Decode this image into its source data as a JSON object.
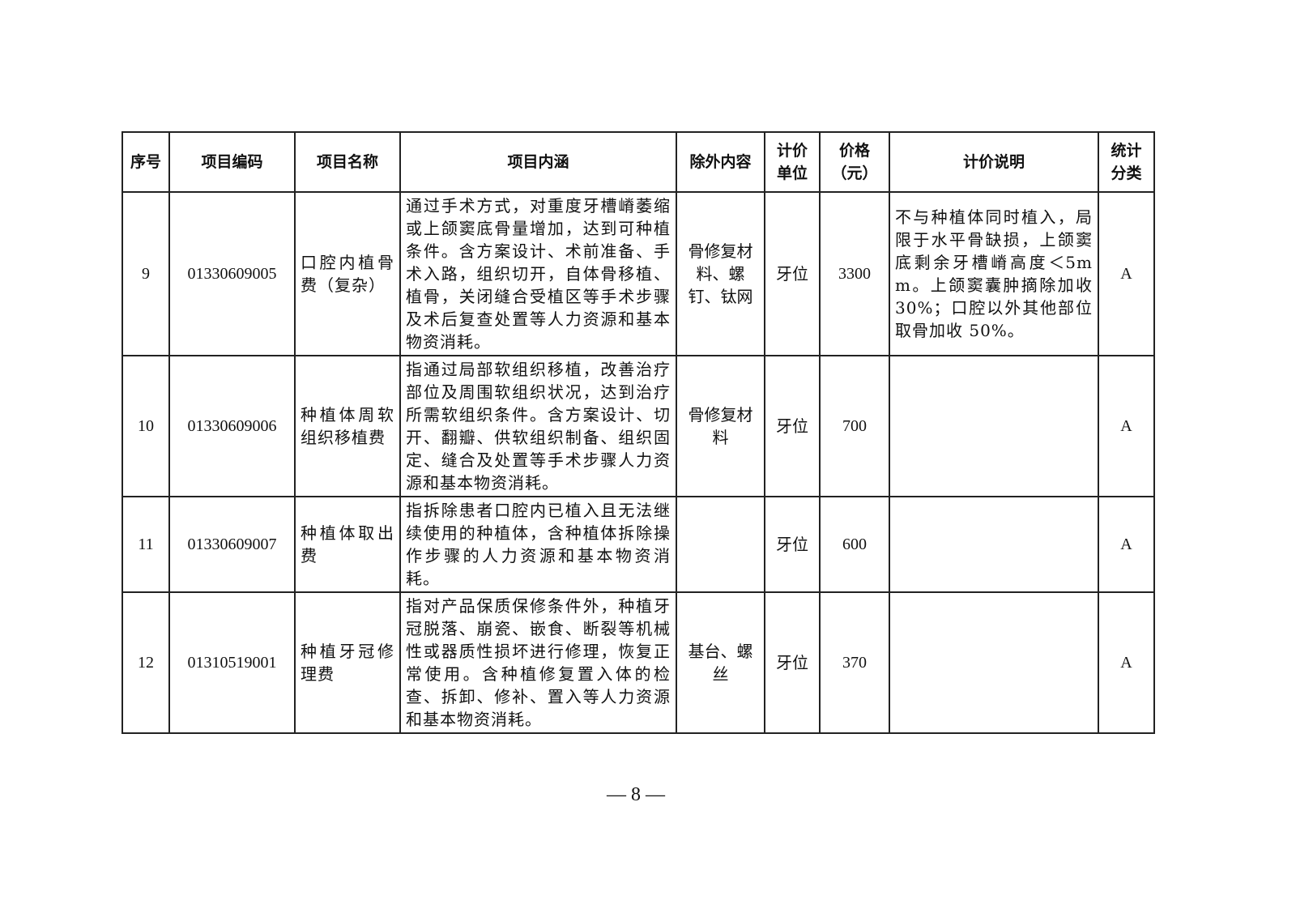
{
  "table": {
    "headers": [
      "序号",
      "项目编码",
      "项目名称",
      "项目内涵",
      "除外内容",
      "计价单位",
      "价格（元）",
      "计价说明",
      "统计分类"
    ],
    "rows": [
      {
        "no": "9",
        "code": "01330609005",
        "name": "口腔内植骨费（复杂）",
        "content": "通过手术方式，对重度牙槽嵴萎缩或上颌窦底骨量增加，达到可种植条件。含方案设计、术前准备、手术入路，组织切开，自体骨移植、植骨，关闭缝合受植区等手术步骤及术后复查处置等人力资源和基本物资消耗。",
        "exclusion": "骨修复材料、螺钉、钛网",
        "unit": "牙位",
        "price": "3300",
        "note": "不与种植体同时植入，局限于水平骨缺损，上颌窦底剩余牙槽嵴高度＜5mm。上颌窦囊肿摘除加收 30%；口腔以外其他部位取骨加收 50%。",
        "category": "A"
      },
      {
        "no": "10",
        "code": "01330609006",
        "name": "种植体周软组织移植费",
        "content": "指通过局部软组织移植，改善治疗部位及周围软组织状况，达到治疗所需软组织条件。含方案设计、切开、翻瓣、供软组织制备、组织固定、缝合及处置等手术步骤人力资源和基本物资消耗。",
        "exclusion": "骨修复材料",
        "unit": "牙位",
        "price": "700",
        "note": "",
        "category": "A"
      },
      {
        "no": "11",
        "code": "01330609007",
        "name": "种植体取出费",
        "content": "指拆除患者口腔内已植入且无法继续使用的种植体，含种植体拆除操作步骤的人力资源和基本物资消耗。",
        "exclusion": "",
        "unit": "牙位",
        "price": "600",
        "note": "",
        "category": "A"
      },
      {
        "no": "12",
        "code": "01310519001",
        "name": "种植牙冠修理费",
        "content": "指对产品保质保修条件外，种植牙冠脱落、崩瓷、嵌食、断裂等机械性或器质性损坏进行修理，恢复正常使用。含种植修复置入体的检查、拆卸、修补、置入等人力资源和基本物资消耗。",
        "exclusion": "基台、螺丝",
        "unit": "牙位",
        "price": "370",
        "note": "",
        "category": "A"
      }
    ]
  },
  "page_number": "— 8 —"
}
